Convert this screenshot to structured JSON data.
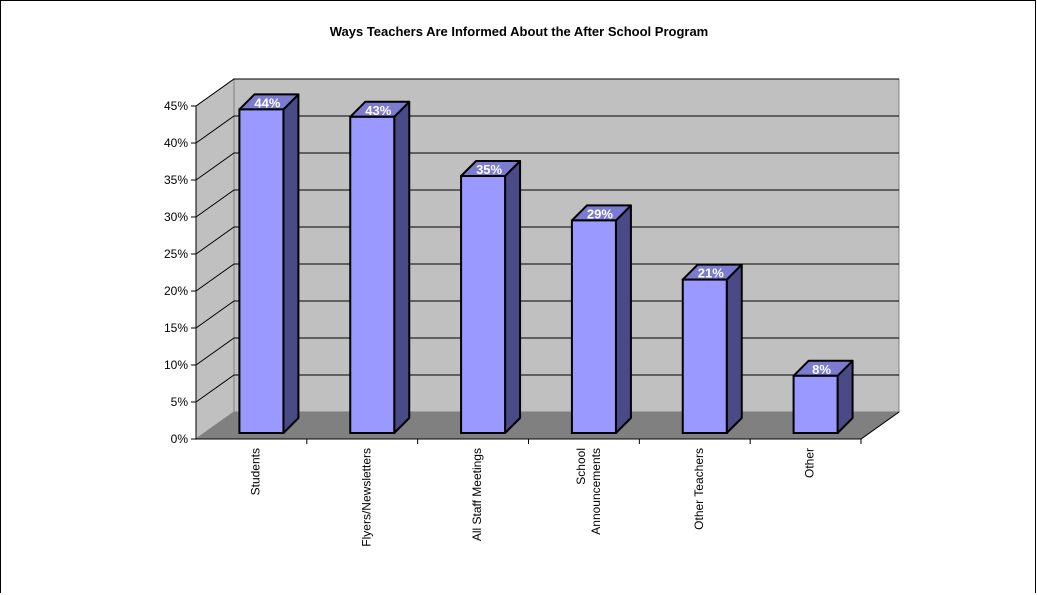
{
  "chart_data": {
    "type": "bar",
    "title": "Ways Teachers Are Informed About the After School Program",
    "categories": [
      "Students",
      "Flyers/Newsletters",
      "All Staff Meetings",
      "School Announcements",
      "Other Teachers",
      "Other"
    ],
    "category_lines": [
      [
        "Students"
      ],
      [
        "Flyers/Newsletters"
      ],
      [
        "All Staff Meetings"
      ],
      [
        "School",
        "Announcements"
      ],
      [
        "Other Teachers"
      ],
      [
        "Other"
      ]
    ],
    "values": [
      44,
      43,
      35,
      29,
      21,
      8
    ],
    "data_labels": [
      "44%",
      "43%",
      "35%",
      "29%",
      "21%",
      "8%"
    ],
    "y_ticks": [
      "0%",
      "5%",
      "10%",
      "15%",
      "20%",
      "25%",
      "30%",
      "35%",
      "40%",
      "45%"
    ],
    "ylim": [
      0,
      45
    ],
    "y_step": 5,
    "grid": true,
    "legend": "none",
    "style": "3d-column",
    "colors": {
      "bar_front": "#9999ff",
      "bar_side": "#4a4a87",
      "bar_top": "#7b7bd0",
      "wall": "#c0c0c0",
      "floor": "#808080",
      "outline": "#000000",
      "data_label": "#ffffff"
    }
  }
}
